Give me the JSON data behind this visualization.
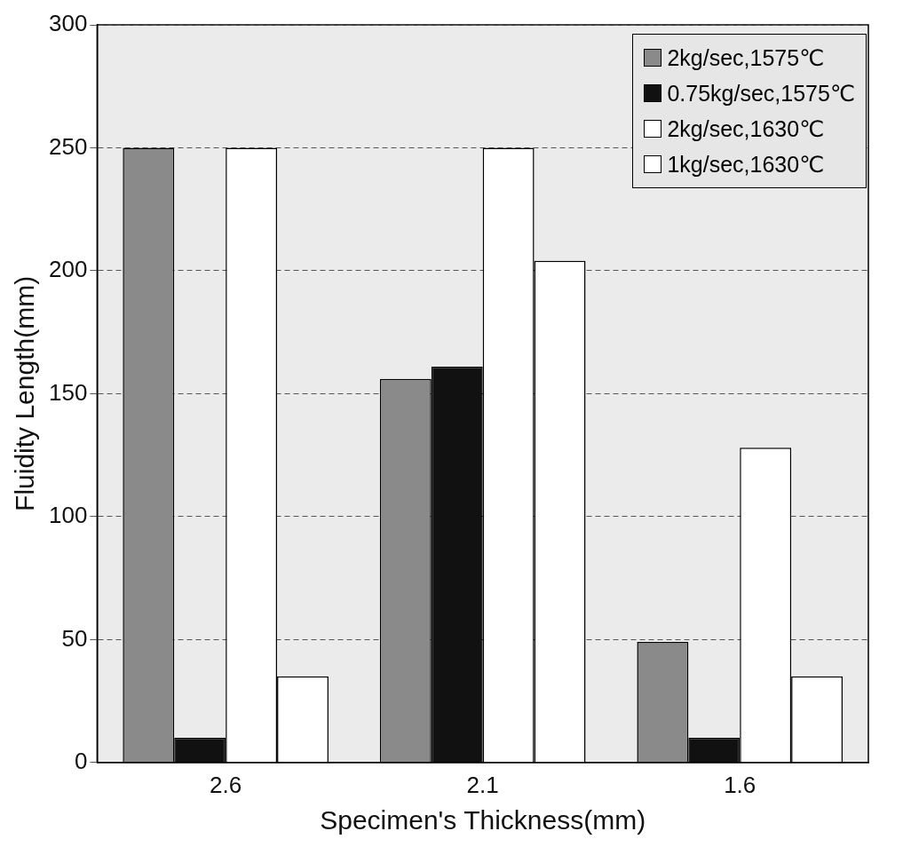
{
  "chart_data": {
    "type": "bar",
    "xlabel": "Specimen's Thickness(mm)",
    "ylabel": "Fluidity Length(mm)",
    "categories": [
      "2.6",
      "2.1",
      "1.6"
    ],
    "series": [
      {
        "name": "2kg/sec,1575℃",
        "color": "#8a8a8a",
        "values": [
          250,
          156,
          49
        ]
      },
      {
        "name": "0.75kg/sec,1575℃",
        "color": "#111111",
        "values": [
          10,
          161,
          10
        ]
      },
      {
        "name": "2kg/sec,1630℃",
        "color": "#ffffff",
        "values": [
          250,
          250,
          128
        ]
      },
      {
        "name": "1kg/sec,1630℃",
        "color": "#ffffff",
        "values": [
          35,
          204,
          35
        ]
      }
    ],
    "ylim": [
      0,
      300
    ],
    "yticks": [
      0,
      50,
      100,
      150,
      200,
      250,
      300
    ],
    "grid": "y",
    "legend": "top right"
  }
}
